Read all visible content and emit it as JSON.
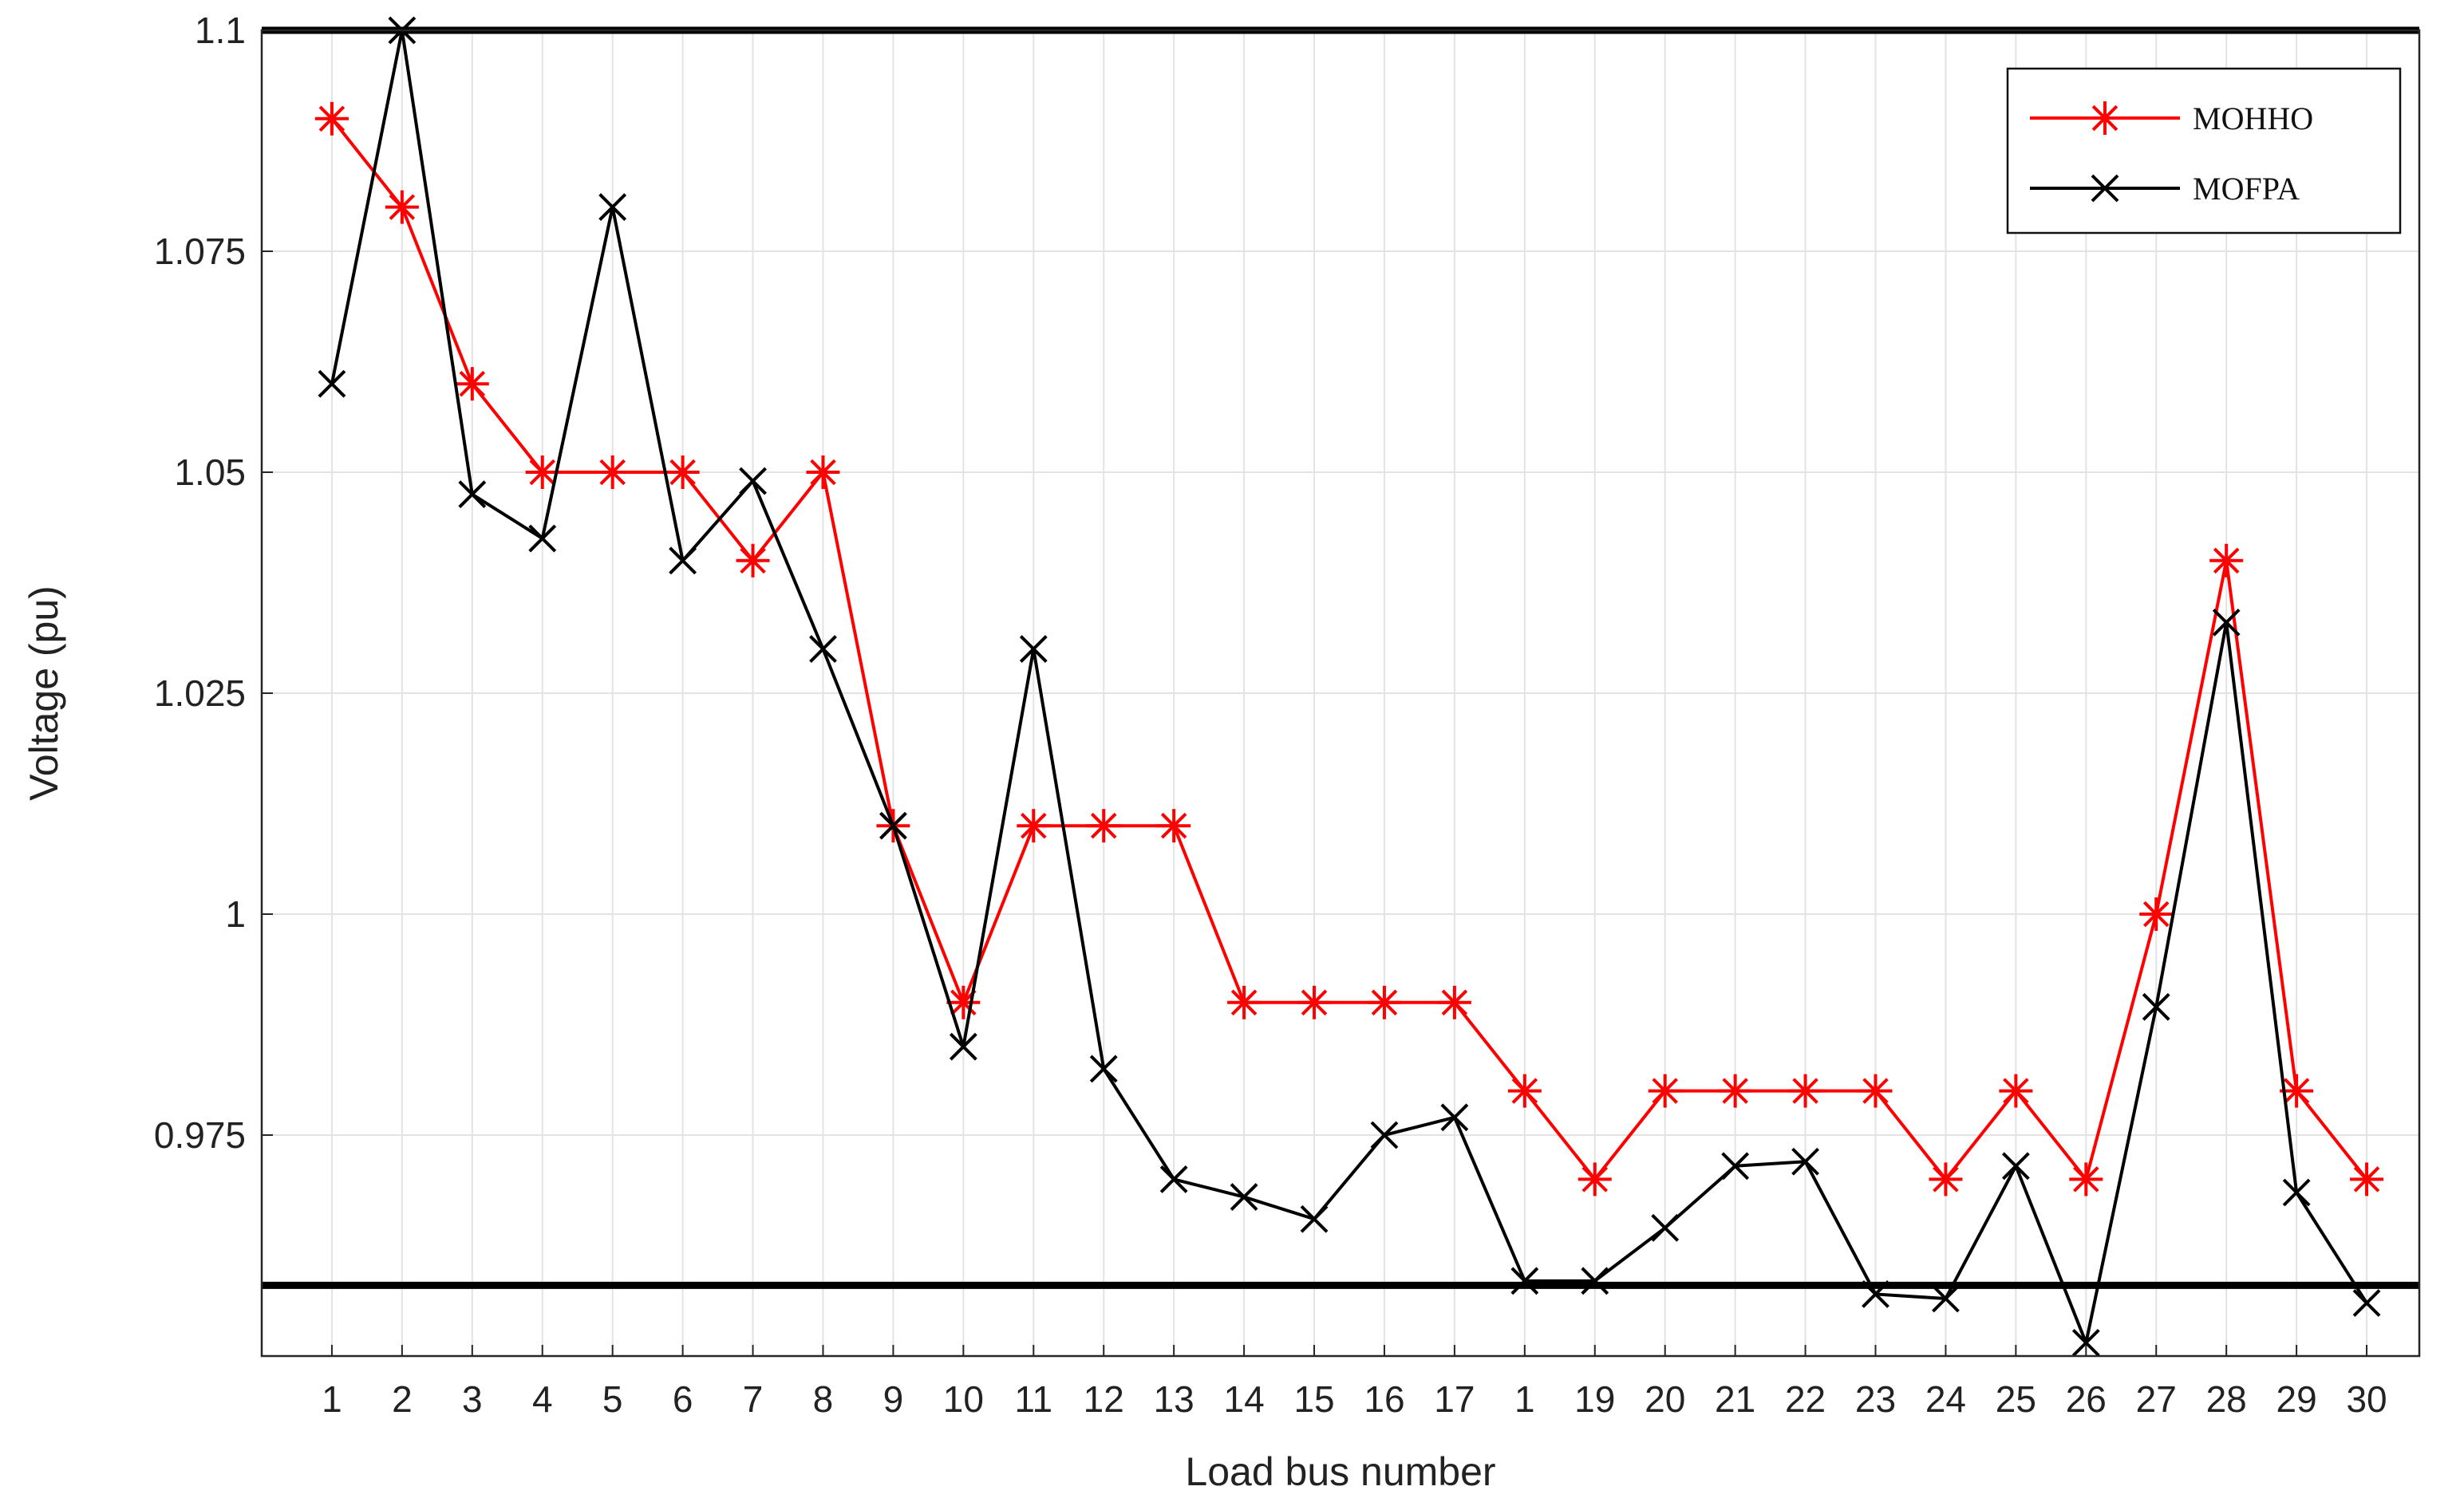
{
  "chart_data": {
    "type": "line",
    "title": "",
    "xlabel": "Load bus number",
    "ylabel": "Voltage (pu)",
    "categories": [
      "1",
      "2",
      "3",
      "4",
      "5",
      "6",
      "7",
      "8",
      "9",
      "10",
      "11",
      "12",
      "13",
      "14",
      "15",
      "16",
      "17",
      "1",
      "19",
      "20",
      "21",
      "22",
      "23",
      "24",
      "25",
      "26",
      "27",
      "28",
      "29",
      "30"
    ],
    "ylim": [
      0.95,
      1.1
    ],
    "yticks": [
      0.975,
      1.0,
      1.025,
      1.05,
      1.075,
      1.1
    ],
    "ytick_labels": [
      "0.975",
      "1",
      "1.025",
      "1.05",
      "1.075",
      "1.1"
    ],
    "grid": true,
    "legend_position": "top-right",
    "limits": [
      1.1,
      0.958
    ],
    "series": [
      {
        "name": "MOHHO",
        "color": "#ff0000",
        "marker": "asterisk",
        "values": [
          1.09,
          1.08,
          1.06,
          1.05,
          1.05,
          1.05,
          1.04,
          1.05,
          1.01,
          0.99,
          1.01,
          1.01,
          1.01,
          0.99,
          0.99,
          0.99,
          0.99,
          0.98,
          0.97,
          0.98,
          0.98,
          0.98,
          0.98,
          0.97,
          0.98,
          0.97,
          1.0,
          1.04,
          0.98,
          0.97
        ]
      },
      {
        "name": "MOFPA",
        "color": "#000000",
        "marker": "x",
        "values": [
          1.06,
          1.1,
          1.0475,
          1.0425,
          1.08,
          1.04,
          1.049,
          1.03,
          1.01,
          0.985,
          1.03,
          0.9825,
          0.97,
          0.968,
          0.9655,
          0.975,
          0.977,
          0.9585,
          0.9585,
          0.9645,
          0.9715,
          0.972,
          0.957,
          0.9565,
          0.9715,
          0.9515,
          0.9895,
          1.033,
          0.9685,
          0.956
        ]
      }
    ]
  }
}
